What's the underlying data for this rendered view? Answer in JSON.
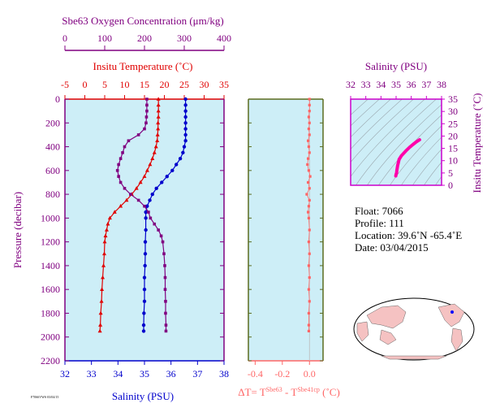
{
  "colors": {
    "oxygen": "#800080",
    "temperature": "#e00000",
    "salinity": "#0000cc",
    "delta": "#ff6666",
    "panel_bg": "#cdeef7",
    "axis": "#555555",
    "frame_olive": "#5b6b1f",
    "ts_line": "#ff00aa",
    "land": "#f5c2c2",
    "ocean": "#ffffff"
  },
  "chart_data": [
    {
      "type": "line",
      "name": "profile",
      "y_axis": {
        "label": "Pressure (decibar)",
        "ylim": [
          0,
          2200
        ],
        "ticks": [
          0,
          200,
          400,
          600,
          800,
          1000,
          1200,
          1400,
          1600,
          1800,
          2000,
          2200
        ],
        "inverted": true
      },
      "axes": {
        "oxygen": {
          "label": "Sbe63 Oxygen Concentration (μm/kg)",
          "xlim": [
            0,
            400
          ],
          "ticks": [
            0,
            100,
            200,
            300,
            400
          ],
          "position": "top"
        },
        "temperature": {
          "label": "Insitu Temperature (˚C)",
          "xlim": [
            -5,
            35
          ],
          "ticks": [
            -5,
            0,
            5,
            10,
            15,
            20,
            25,
            30,
            35
          ],
          "position": "top"
        },
        "salinity": {
          "label": "Salinity (PSU)",
          "xlim": [
            32,
            38
          ],
          "ticks": [
            32,
            33,
            34,
            35,
            36,
            37,
            38
          ],
          "position": "bottom"
        }
      },
      "series": [
        {
          "name": "temperature",
          "axis": "temperature",
          "marker": "triangle",
          "points": [
            [
              18.5,
              0
            ],
            [
              18.5,
              50
            ],
            [
              18.5,
              100
            ],
            [
              18.5,
              150
            ],
            [
              18.4,
              200
            ],
            [
              18.4,
              250
            ],
            [
              18.3,
              300
            ],
            [
              18.2,
              350
            ],
            [
              17.9,
              400
            ],
            [
              17.5,
              450
            ],
            [
              17.0,
              500
            ],
            [
              16.4,
              550
            ],
            [
              15.7,
              600
            ],
            [
              15.0,
              650
            ],
            [
              14.0,
              700
            ],
            [
              13.0,
              750
            ],
            [
              11.8,
              800
            ],
            [
              10.5,
              850
            ],
            [
              9.0,
              900
            ],
            [
              7.5,
              950
            ],
            [
              6.3,
              1000
            ],
            [
              5.8,
              1050
            ],
            [
              5.5,
              1100
            ],
            [
              5.2,
              1150
            ],
            [
              5.0,
              1200
            ],
            [
              4.9,
              1300
            ],
            [
              4.7,
              1400
            ],
            [
              4.5,
              1500
            ],
            [
              4.3,
              1600
            ],
            [
              4.2,
              1700
            ],
            [
              4.0,
              1800
            ],
            [
              3.9,
              1900
            ],
            [
              3.8,
              1950
            ]
          ]
        },
        {
          "name": "salinity",
          "axis": "salinity",
          "marker": "circle",
          "points": [
            [
              36.55,
              0
            ],
            [
              36.55,
              50
            ],
            [
              36.55,
              100
            ],
            [
              36.55,
              150
            ],
            [
              36.55,
              200
            ],
            [
              36.55,
              250
            ],
            [
              36.55,
              300
            ],
            [
              36.55,
              350
            ],
            [
              36.5,
              400
            ],
            [
              36.45,
              450
            ],
            [
              36.35,
              500
            ],
            [
              36.2,
              550
            ],
            [
              36.05,
              600
            ],
            [
              35.85,
              650
            ],
            [
              35.65,
              700
            ],
            [
              35.45,
              750
            ],
            [
              35.3,
              800
            ],
            [
              35.2,
              850
            ],
            [
              35.1,
              900
            ],
            [
              35.05,
              950
            ],
            [
              35.05,
              1000
            ],
            [
              35.05,
              1100
            ],
            [
              35.03,
              1200
            ],
            [
              35.03,
              1300
            ],
            [
              35.02,
              1400
            ],
            [
              35.0,
              1500
            ],
            [
              35.0,
              1600
            ],
            [
              35.0,
              1700
            ],
            [
              34.98,
              1800
            ],
            [
              34.97,
              1900
            ],
            [
              34.97,
              1950
            ]
          ]
        },
        {
          "name": "oxygen",
          "axis": "oxygen",
          "marker": "square",
          "points": [
            [
              206,
              0
            ],
            [
              206,
              50
            ],
            [
              206,
              100
            ],
            [
              205,
              150
            ],
            [
              204,
              200
            ],
            [
              200,
              250
            ],
            [
              185,
              300
            ],
            [
              160,
              350
            ],
            [
              150,
              400
            ],
            [
              145,
              450
            ],
            [
              140,
              500
            ],
            [
              135,
              550
            ],
            [
              132,
              600
            ],
            [
              135,
              650
            ],
            [
              140,
              700
            ],
            [
              150,
              750
            ],
            [
              165,
              800
            ],
            [
              185,
              850
            ],
            [
              200,
              900
            ],
            [
              210,
              950
            ],
            [
              215,
              1000
            ],
            [
              225,
              1050
            ],
            [
              235,
              1100
            ],
            [
              242,
              1150
            ],
            [
              246,
              1200
            ],
            [
              249,
              1300
            ],
            [
              251,
              1400
            ],
            [
              252,
              1500
            ],
            [
              252,
              1600
            ],
            [
              253,
              1700
            ],
            [
              253,
              1800
            ],
            [
              254,
              1900
            ],
            [
              254,
              1950
            ]
          ]
        }
      ]
    },
    {
      "type": "scatter",
      "name": "delta_t",
      "xlabel": "ΔT= T",
      "xlabel_sup1": "Sbe63",
      "xlabel_mid": " - T",
      "xlabel_sup2": "Sbe41cp",
      "xlabel_unit": " (˚C)",
      "xlim": [
        -0.45,
        0.1
      ],
      "ticks": [
        -0.4,
        -0.2,
        0.0
      ],
      "tick_labels": [
        "-0.4",
        "-0.2",
        "0.0"
      ],
      "ylim": [
        0,
        2200
      ],
      "points": [
        [
          0,
          0
        ],
        [
          0,
          50
        ],
        [
          0,
          100
        ],
        [
          -0.005,
          150
        ],
        [
          0,
          200
        ],
        [
          -0.005,
          250
        ],
        [
          0,
          300
        ],
        [
          -0.01,
          350
        ],
        [
          -0.005,
          400
        ],
        [
          0,
          450
        ],
        [
          -0.01,
          500
        ],
        [
          -0.015,
          550
        ],
        [
          -0.005,
          600
        ],
        [
          0.005,
          650
        ],
        [
          -0.01,
          700
        ],
        [
          0,
          750
        ],
        [
          -0.02,
          800
        ],
        [
          0,
          850
        ],
        [
          -0.005,
          900
        ],
        [
          -0.01,
          950
        ],
        [
          -0.005,
          1000
        ],
        [
          0,
          1100
        ],
        [
          -0.005,
          1200
        ],
        [
          0,
          1300
        ],
        [
          -0.005,
          1400
        ],
        [
          0,
          1500
        ],
        [
          -0.005,
          1600
        ],
        [
          0,
          1700
        ],
        [
          -0.005,
          1800
        ],
        [
          -0.005,
          1900
        ],
        [
          -0.005,
          1950
        ]
      ]
    },
    {
      "type": "line",
      "name": "ts_diagram",
      "xlabel": "Salinity (PSU)",
      "ylabel": "Insitu Temperature (˚C)",
      "xlim": [
        32,
        38
      ],
      "ylim": [
        0,
        35
      ],
      "xticks": [
        32,
        33,
        34,
        35,
        36,
        37,
        38
      ],
      "yticks": [
        0,
        5,
        10,
        15,
        20,
        25,
        30,
        35
      ],
      "points": [
        [
          34.98,
          3.8
        ],
        [
          35.0,
          4.5
        ],
        [
          35.03,
          5.0
        ],
        [
          35.05,
          6.0
        ],
        [
          35.1,
          8.0
        ],
        [
          35.2,
          10.5
        ],
        [
          35.35,
          12.0
        ],
        [
          35.65,
          14.0
        ],
        [
          35.9,
          15.5
        ],
        [
          36.1,
          16.5
        ],
        [
          36.3,
          17.5
        ],
        [
          36.5,
          18.3
        ],
        [
          36.55,
          18.5
        ]
      ]
    }
  ],
  "info": {
    "float": "Float:  7066",
    "profile": "Profile:  111",
    "location": "Location:  39.6˚N  -65.4˚E",
    "date": "Date:  03/04/2015"
  },
  "footer_small": "F7066VWS 03/04/15"
}
